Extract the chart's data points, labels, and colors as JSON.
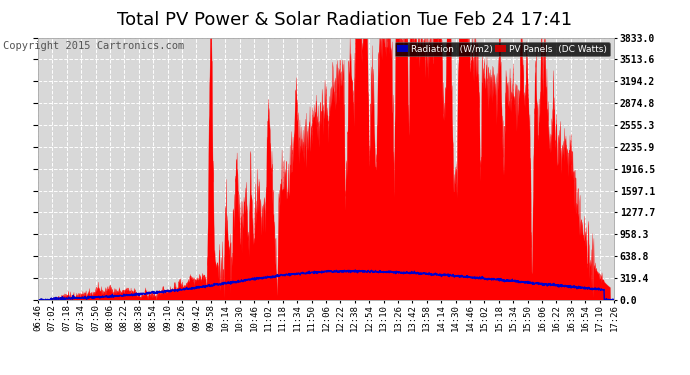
{
  "title": "Total PV Power & Solar Radiation Tue Feb 24 17:41",
  "copyright": "Copyright 2015 Cartronics.com",
  "y_ticks": [
    0.0,
    319.4,
    638.8,
    958.3,
    1277.7,
    1597.1,
    1916.5,
    2235.9,
    2555.3,
    2874.8,
    3194.2,
    3513.6,
    3833.0
  ],
  "y_max": 3833.0,
  "y_min": 0.0,
  "bg_color": "#ffffff",
  "plot_bg_color": "#d8d8d8",
  "grid_color": "#ffffff",
  "pv_fill_color": "#ff0000",
  "radiation_line_color": "#0000cc",
  "legend_bg_radiation": "#0000bb",
  "legend_bg_pv": "#cc0000",
  "x_tick_labels": [
    "06:46",
    "07:02",
    "07:18",
    "07:34",
    "07:50",
    "08:06",
    "08:22",
    "08:38",
    "08:54",
    "09:10",
    "09:26",
    "09:42",
    "09:58",
    "10:14",
    "10:30",
    "10:46",
    "11:02",
    "11:18",
    "11:34",
    "11:50",
    "12:06",
    "12:22",
    "12:38",
    "12:54",
    "13:10",
    "13:26",
    "13:42",
    "13:58",
    "14:14",
    "14:30",
    "14:46",
    "15:02",
    "15:18",
    "15:34",
    "15:50",
    "16:06",
    "16:22",
    "16:38",
    "16:54",
    "17:10",
    "17:26"
  ],
  "title_fontsize": 13,
  "axis_fontsize": 6.5,
  "copyright_fontsize": 7.5
}
